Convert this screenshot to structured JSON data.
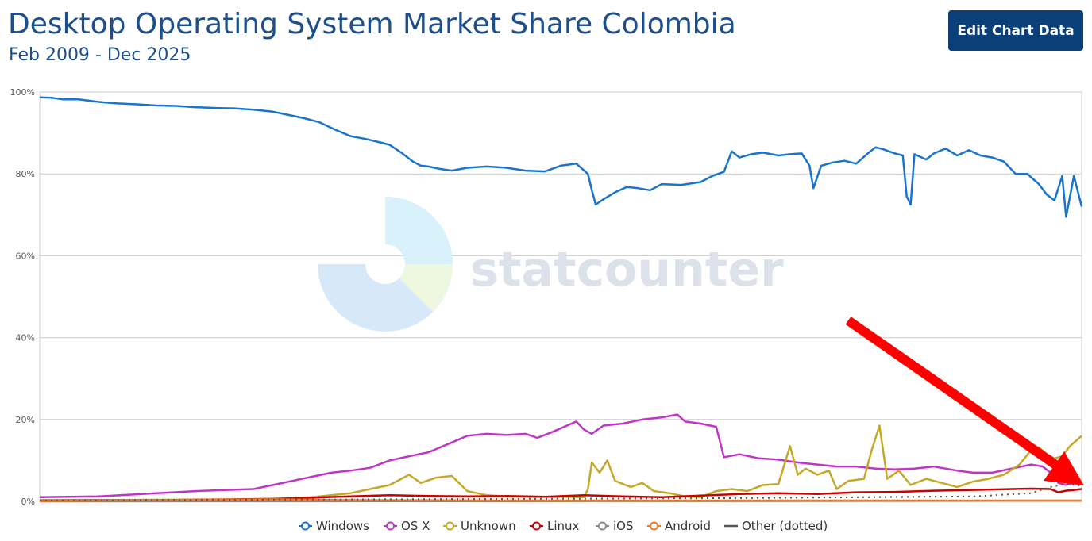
{
  "header": {
    "title": "Desktop Operating System Market Share Colombia",
    "subtitle": "Feb 2009 - Dec 2025",
    "edit_button_label": "Edit Chart Data"
  },
  "watermark": {
    "text": "statcounter"
  },
  "colors": {
    "title": "#1d4f8c",
    "button": "#0a3f7a",
    "grid": "#cccccc"
  },
  "chart_data": {
    "type": "line",
    "title": "Desktop Operating System Market Share Colombia",
    "subtitle": "Feb 2009 - Dec 2025",
    "x_range": [
      "2009-02",
      "2025-12"
    ],
    "ylim": [
      0,
      100
    ],
    "y_ticks": [
      "0%",
      "20%",
      "40%",
      "60%",
      "80%",
      "100%"
    ],
    "grid": true,
    "legend_position": "bottom",
    "legend": [
      "Windows",
      "OS X",
      "Unknown",
      "Linux",
      "iOS",
      "Android",
      "Other (dotted)"
    ],
    "series": [
      {
        "name": "Windows",
        "color": "#1874cd",
        "style": "solid",
        "points": [
          [
            0,
            98.7
          ],
          [
            3,
            98.6
          ],
          [
            6,
            98.2
          ],
          [
            10,
            98.2
          ],
          [
            15,
            97.6
          ],
          [
            20,
            97.2
          ],
          [
            25,
            97.0
          ],
          [
            30,
            96.7
          ],
          [
            35,
            96.6
          ],
          [
            40,
            96.3
          ],
          [
            45,
            96.1
          ],
          [
            50,
            96.0
          ],
          [
            55,
            95.7
          ],
          [
            60,
            95.2
          ],
          [
            64,
            94.4
          ],
          [
            68,
            93.6
          ],
          [
            70,
            93.1
          ],
          [
            72,
            92.6
          ],
          [
            76,
            90.8
          ],
          [
            80,
            89.2
          ],
          [
            84,
            88.5
          ],
          [
            88,
            87.6
          ],
          [
            90,
            87.1
          ],
          [
            93,
            85.2
          ],
          [
            96,
            83.0
          ],
          [
            98,
            82.0
          ],
          [
            100,
            81.8
          ],
          [
            103,
            81.2
          ],
          [
            106,
            80.8
          ],
          [
            110,
            81.5
          ],
          [
            115,
            81.8
          ],
          [
            120,
            81.5
          ],
          [
            125,
            80.8
          ],
          [
            130,
            80.6
          ],
          [
            134,
            82.0
          ],
          [
            138,
            82.5
          ],
          [
            141,
            80.0
          ],
          [
            142,
            76.0
          ],
          [
            143,
            72.5
          ],
          [
            145,
            73.8
          ],
          [
            148,
            75.5
          ],
          [
            151,
            76.8
          ],
          [
            154,
            76.5
          ],
          [
            157,
            76.0
          ],
          [
            160,
            77.5
          ],
          [
            165,
            77.3
          ],
          [
            170,
            78.0
          ],
          [
            173,
            79.5
          ],
          [
            176,
            80.5
          ],
          [
            178,
            85.5
          ],
          [
            180,
            84.0
          ],
          [
            183,
            84.8
          ],
          [
            186,
            85.2
          ],
          [
            190,
            84.5
          ],
          [
            193,
            84.8
          ],
          [
            196,
            85.0
          ],
          [
            198,
            82.0
          ],
          [
            199,
            76.5
          ],
          [
            201,
            82.0
          ],
          [
            204,
            82.8
          ],
          [
            207,
            83.2
          ],
          [
            210,
            82.5
          ],
          [
            213,
            85.0
          ],
          [
            215,
            86.5
          ],
          [
            217,
            86.0
          ],
          [
            220,
            85.0
          ],
          [
            222,
            84.5
          ],
          [
            223,
            74.5
          ],
          [
            224,
            72.5
          ],
          [
            225,
            84.8
          ],
          [
            228,
            83.5
          ],
          [
            230,
            85.0
          ],
          [
            233,
            86.2
          ],
          [
            236,
            84.5
          ],
          [
            239,
            85.8
          ],
          [
            242,
            84.5
          ],
          [
            245,
            84.0
          ],
          [
            248,
            83.0
          ],
          [
            251,
            80.0
          ],
          [
            254,
            80.0
          ],
          [
            257,
            77.5
          ],
          [
            259,
            75.0
          ],
          [
            261,
            73.5
          ],
          [
            263,
            79.5
          ],
          [
            264,
            69.5
          ],
          [
            266,
            79.5
          ],
          [
            268,
            72.0
          ]
        ]
      },
      {
        "name": "OS X",
        "color": "#c034c8",
        "style": "solid",
        "points": [
          [
            0,
            1.0
          ],
          [
            15,
            1.2
          ],
          [
            30,
            2.0
          ],
          [
            40,
            2.5
          ],
          [
            55,
            3.0
          ],
          [
            60,
            4.0
          ],
          [
            65,
            5.0
          ],
          [
            70,
            6.0
          ],
          [
            75,
            7.0
          ],
          [
            80,
            7.5
          ],
          [
            85,
            8.2
          ],
          [
            90,
            10.0
          ],
          [
            95,
            11.0
          ],
          [
            100,
            12.0
          ],
          [
            105,
            14.0
          ],
          [
            110,
            16.0
          ],
          [
            115,
            16.5
          ],
          [
            120,
            16.2
          ],
          [
            125,
            16.5
          ],
          [
            128,
            15.5
          ],
          [
            132,
            17.0
          ],
          [
            138,
            19.5
          ],
          [
            140,
            17.5
          ],
          [
            142,
            16.5
          ],
          [
            145,
            18.5
          ],
          [
            150,
            19.0
          ],
          [
            155,
            20.0
          ],
          [
            160,
            20.5
          ],
          [
            164,
            21.2
          ],
          [
            166,
            19.5
          ],
          [
            170,
            19.0
          ],
          [
            174,
            18.2
          ],
          [
            176,
            10.8
          ],
          [
            180,
            11.5
          ],
          [
            185,
            10.5
          ],
          [
            190,
            10.2
          ],
          [
            195,
            9.5
          ],
          [
            200,
            9.0
          ],
          [
            205,
            8.5
          ],
          [
            210,
            8.5
          ],
          [
            215,
            8.0
          ],
          [
            220,
            7.8
          ],
          [
            225,
            8.0
          ],
          [
            230,
            8.5
          ],
          [
            233,
            8.0
          ],
          [
            236,
            7.5
          ],
          [
            240,
            7.0
          ],
          [
            245,
            7.0
          ],
          [
            250,
            8.0
          ],
          [
            255,
            9.0
          ],
          [
            258,
            8.5
          ],
          [
            260,
            7.0
          ],
          [
            262,
            4.5
          ],
          [
            264,
            4.0
          ],
          [
            266,
            4.5
          ],
          [
            268,
            4.3
          ]
        ]
      },
      {
        "name": "Unknown",
        "color": "#c5a828",
        "style": "solid",
        "points": [
          [
            0,
            0.3
          ],
          [
            60,
            0.5
          ],
          [
            70,
            1.0
          ],
          [
            80,
            2.0
          ],
          [
            85,
            3.0
          ],
          [
            90,
            4.0
          ],
          [
            95,
            6.5
          ],
          [
            98,
            4.5
          ],
          [
            102,
            5.8
          ],
          [
            106,
            6.2
          ],
          [
            110,
            2.5
          ],
          [
            115,
            1.5
          ],
          [
            120,
            1.2
          ],
          [
            140,
            1.0
          ],
          [
            141,
            3.0
          ],
          [
            142,
            9.5
          ],
          [
            144,
            7.0
          ],
          [
            146,
            10.0
          ],
          [
            148,
            5.0
          ],
          [
            152,
            3.5
          ],
          [
            155,
            4.5
          ],
          [
            158,
            2.5
          ],
          [
            162,
            2.0
          ],
          [
            166,
            1.2
          ],
          [
            170,
            1.0
          ],
          [
            174,
            2.5
          ],
          [
            178,
            3.0
          ],
          [
            182,
            2.5
          ],
          [
            186,
            4.0
          ],
          [
            190,
            4.2
          ],
          [
            193,
            13.5
          ],
          [
            195,
            6.5
          ],
          [
            197,
            8.0
          ],
          [
            200,
            6.5
          ],
          [
            203,
            7.5
          ],
          [
            205,
            3.0
          ],
          [
            208,
            5.0
          ],
          [
            212,
            5.5
          ],
          [
            214,
            12.5
          ],
          [
            216,
            18.5
          ],
          [
            218,
            5.5
          ],
          [
            221,
            7.5
          ],
          [
            224,
            4.0
          ],
          [
            228,
            5.5
          ],
          [
            232,
            4.5
          ],
          [
            236,
            3.5
          ],
          [
            240,
            4.8
          ],
          [
            244,
            5.5
          ],
          [
            248,
            6.5
          ],
          [
            252,
            9.0
          ],
          [
            255,
            12.5
          ],
          [
            257,
            13.2
          ],
          [
            259,
            11.5
          ],
          [
            261,
            10.5
          ],
          [
            263,
            11.0
          ],
          [
            265,
            13.5
          ],
          [
            268,
            16.0
          ]
        ]
      },
      {
        "name": "Linux",
        "color": "#cc0000",
        "style": "solid",
        "points": [
          [
            0,
            0.2
          ],
          [
            30,
            0.3
          ],
          [
            60,
            0.6
          ],
          [
            70,
            0.9
          ],
          [
            80,
            1.2
          ],
          [
            90,
            1.5
          ],
          [
            100,
            1.3
          ],
          [
            110,
            1.2
          ],
          [
            120,
            1.3
          ],
          [
            130,
            1.1
          ],
          [
            140,
            1.5
          ],
          [
            150,
            1.2
          ],
          [
            160,
            1.0
          ],
          [
            170,
            1.4
          ],
          [
            180,
            1.8
          ],
          [
            190,
            2.0
          ],
          [
            200,
            1.8
          ],
          [
            210,
            2.2
          ],
          [
            220,
            2.3
          ],
          [
            230,
            2.6
          ],
          [
            240,
            2.8
          ],
          [
            250,
            3.0
          ],
          [
            255,
            3.1
          ],
          [
            260,
            3.0
          ],
          [
            262,
            2.2
          ],
          [
            264,
            2.6
          ],
          [
            266,
            2.8
          ],
          [
            268,
            3.0
          ]
        ]
      },
      {
        "name": "iOS",
        "color": "#888888",
        "style": "solid",
        "points": [
          [
            0,
            0.0
          ],
          [
            120,
            0.05
          ],
          [
            200,
            0.1
          ],
          [
            268,
            0.15
          ]
        ]
      },
      {
        "name": "Android",
        "color": "#ee7722",
        "style": "solid",
        "points": [
          [
            0,
            0.1
          ],
          [
            60,
            0.5
          ],
          [
            80,
            0.3
          ],
          [
            120,
            0.2
          ],
          [
            200,
            0.2
          ],
          [
            268,
            0.2
          ]
        ]
      },
      {
        "name": "Other (dotted)",
        "color": "#555555",
        "style": "dotted",
        "points": [
          [
            0,
            0.2
          ],
          [
            60,
            0.4
          ],
          [
            120,
            0.6
          ],
          [
            180,
            0.8
          ],
          [
            240,
            1.2
          ],
          [
            255,
            2.0
          ],
          [
            260,
            3.5
          ],
          [
            264,
            4.2
          ],
          [
            268,
            3.8
          ]
        ]
      }
    ]
  }
}
